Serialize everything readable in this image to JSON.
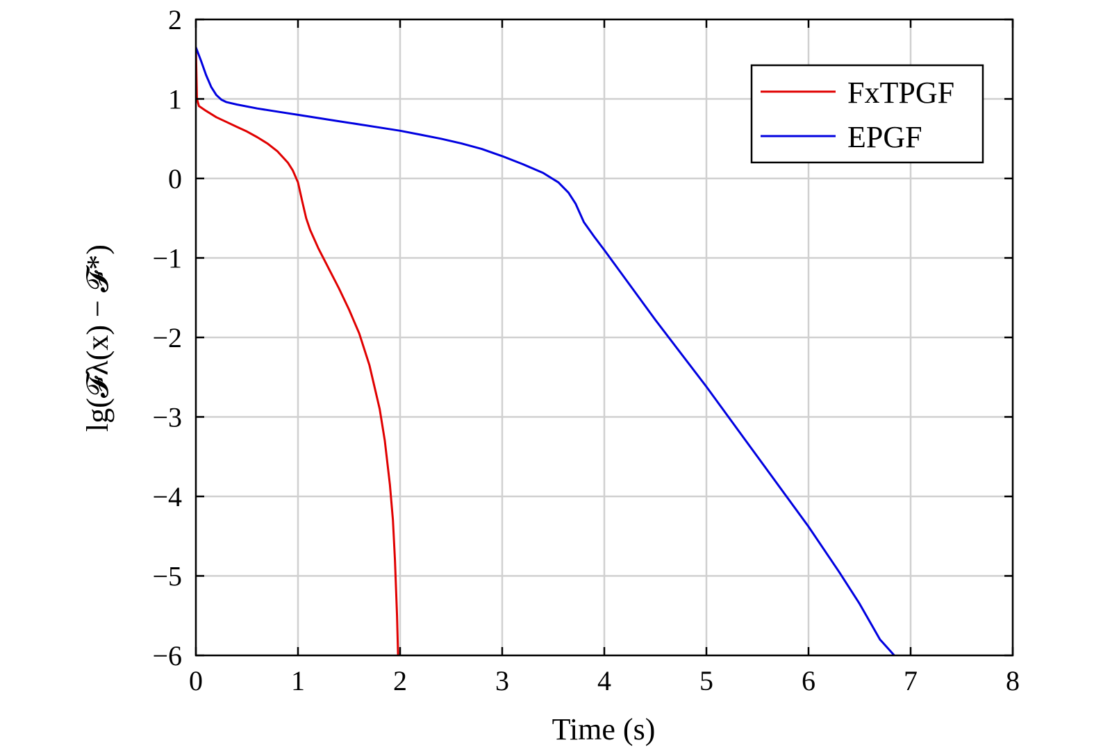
{
  "chart_data": {
    "type": "line",
    "xlabel": "Time (s)",
    "ylabel": "lg(𝓕λ(x) − 𝓕*)",
    "xlim": [
      0,
      8
    ],
    "ylim": [
      -6,
      2
    ],
    "xticks": [
      0,
      1,
      2,
      3,
      4,
      5,
      6,
      7,
      8
    ],
    "yticks": [
      2,
      1,
      0,
      -1,
      -2,
      -3,
      -4,
      -5,
      -6
    ],
    "xtick_labels": [
      "0",
      "1",
      "2",
      "3",
      "4",
      "5",
      "6",
      "7",
      "8"
    ],
    "ytick_labels": [
      "2",
      "1",
      "0",
      "−1",
      "−2",
      "−3",
      "−4",
      "−5",
      "−6"
    ],
    "grid": true,
    "legend_position": "top-right",
    "series": [
      {
        "name": "FxTPGF",
        "color": "#e00000",
        "points": [
          [
            0,
            1.65
          ],
          [
            0.01,
            1.0
          ],
          [
            0.03,
            0.91
          ],
          [
            0.1,
            0.85
          ],
          [
            0.2,
            0.77
          ],
          [
            0.3,
            0.71
          ],
          [
            0.4,
            0.65
          ],
          [
            0.5,
            0.59
          ],
          [
            0.6,
            0.52
          ],
          [
            0.7,
            0.44
          ],
          [
            0.8,
            0.34
          ],
          [
            0.9,
            0.2
          ],
          [
            0.95,
            0.1
          ],
          [
            1.0,
            -0.05
          ],
          [
            1.04,
            -0.28
          ],
          [
            1.08,
            -0.5
          ],
          [
            1.12,
            -0.65
          ],
          [
            1.2,
            -0.88
          ],
          [
            1.3,
            -1.13
          ],
          [
            1.4,
            -1.38
          ],
          [
            1.5,
            -1.65
          ],
          [
            1.6,
            -1.95
          ],
          [
            1.7,
            -2.35
          ],
          [
            1.8,
            -2.9
          ],
          [
            1.85,
            -3.3
          ],
          [
            1.9,
            -3.85
          ],
          [
            1.93,
            -4.3
          ],
          [
            1.95,
            -4.8
          ],
          [
            1.97,
            -5.5
          ],
          [
            1.98,
            -6.0
          ]
        ]
      },
      {
        "name": "EPGF",
        "color": "#0000e0",
        "points": [
          [
            0,
            1.65
          ],
          [
            0.05,
            1.48
          ],
          [
            0.1,
            1.3
          ],
          [
            0.15,
            1.15
          ],
          [
            0.2,
            1.05
          ],
          [
            0.25,
            0.99
          ],
          [
            0.3,
            0.96
          ],
          [
            0.4,
            0.93
          ],
          [
            0.6,
            0.88
          ],
          [
            0.8,
            0.84
          ],
          [
            1.0,
            0.8
          ],
          [
            1.2,
            0.76
          ],
          [
            1.4,
            0.72
          ],
          [
            1.6,
            0.68
          ],
          [
            1.8,
            0.64
          ],
          [
            2.0,
            0.6
          ],
          [
            2.2,
            0.55
          ],
          [
            2.4,
            0.5
          ],
          [
            2.6,
            0.44
          ],
          [
            2.8,
            0.37
          ],
          [
            3.0,
            0.28
          ],
          [
            3.2,
            0.18
          ],
          [
            3.4,
            0.07
          ],
          [
            3.55,
            -0.05
          ],
          [
            3.65,
            -0.18
          ],
          [
            3.72,
            -0.32
          ],
          [
            3.8,
            -0.55
          ],
          [
            3.9,
            -0.73
          ],
          [
            4.0,
            -0.9
          ],
          [
            4.5,
            -1.78
          ],
          [
            5.0,
            -2.62
          ],
          [
            5.5,
            -3.5
          ],
          [
            6.0,
            -4.38
          ],
          [
            6.3,
            -4.95
          ],
          [
            6.5,
            -5.35
          ],
          [
            6.7,
            -5.8
          ],
          [
            6.84,
            -6.0
          ]
        ]
      }
    ]
  }
}
